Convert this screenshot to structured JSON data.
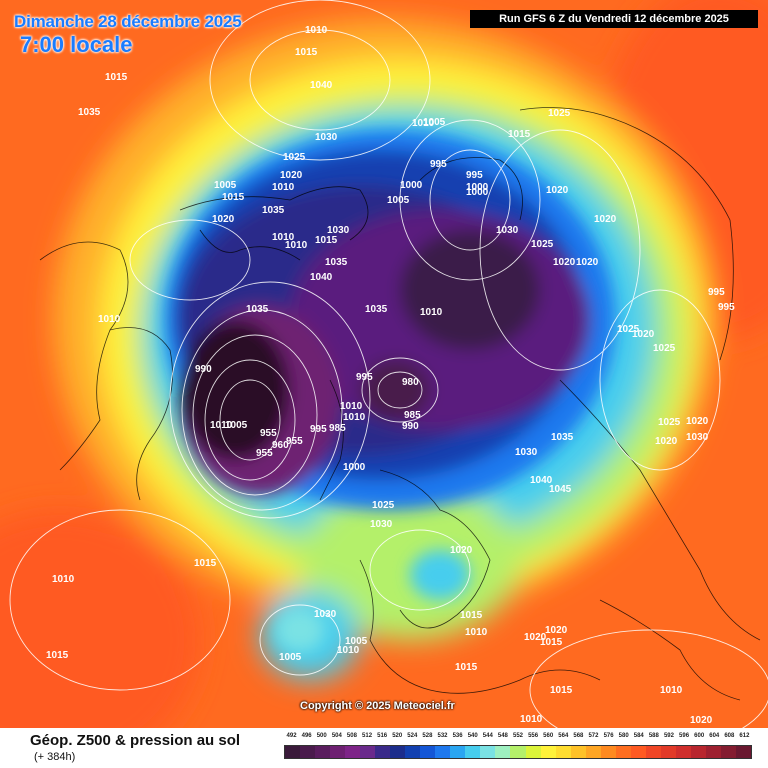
{
  "header": {
    "date_title": "Dimanche 28 décembre 2025",
    "time_title": "7:00 locale",
    "run_info": "Run GFS 6 Z du Vendredi 12 décembre 2025"
  },
  "copyright": "Copyright © 2025 Meteociel.fr",
  "footer": {
    "product_title": "Géop. Z500 & pression au sol",
    "lead_time": "(+ 384h)"
  },
  "legend": {
    "values": [
      "492",
      "496",
      "500",
      "504",
      "508",
      "512",
      "516",
      "520",
      "524",
      "528",
      "532",
      "536",
      "540",
      "544",
      "548",
      "552",
      "556",
      "560",
      "564",
      "568",
      "572",
      "576",
      "580",
      "584",
      "588",
      "592",
      "596",
      "600",
      "604",
      "608",
      "612"
    ],
    "colors": [
      "#3a1a3a",
      "#4a1b4c",
      "#5a1d5e",
      "#6e2072",
      "#7e2488",
      "#6a2a8c",
      "#3a2a8a",
      "#1c2d8c",
      "#1240b0",
      "#1456d6",
      "#1e78ee",
      "#2aa6f2",
      "#46cdee",
      "#7ae2e4",
      "#9ef0c0",
      "#b4f06a",
      "#dcf43a",
      "#fff23a",
      "#ffdd30",
      "#ffc228",
      "#ffa624",
      "#ff8a20",
      "#ff6e20",
      "#ff5a22",
      "#f04626",
      "#e23a28",
      "#d02e2c",
      "#b8262e",
      "#9e2030",
      "#841c30",
      "#6a1830"
    ]
  },
  "isobar_labels": [
    "1010",
    "1015",
    "1015",
    "1035",
    "1040",
    "1030",
    "1025",
    "1020",
    "1010",
    "1005",
    "1015",
    "1020",
    "1010",
    "1010",
    "1015",
    "1030",
    "1035",
    "1035",
    "1040",
    "1035",
    "1035",
    "990",
    "1010",
    "1005",
    "955",
    "955",
    "960",
    "955",
    "995",
    "985",
    "1010",
    "1010",
    "995",
    "1000",
    "980",
    "985",
    "990",
    "1005",
    "1010",
    "1000",
    "1005",
    "1000",
    "995",
    "1000",
    "995",
    "1015",
    "1025",
    "1020",
    "1030",
    "1025",
    "1020",
    "1020",
    "1020",
    "1010",
    "995",
    "995",
    "1025",
    "1020",
    "1025",
    "1025",
    "1020",
    "1020",
    "1030",
    "1035",
    "1030",
    "1040",
    "1045",
    "1025",
    "1030",
    "1020",
    "1015",
    "1030",
    "1005",
    "1010",
    "1005",
    "1015",
    "1015",
    "1010",
    "1020",
    "1020",
    "1015",
    "1010",
    "1010",
    "1020",
    "1015",
    "1010",
    "1015",
    "1010"
  ]
}
